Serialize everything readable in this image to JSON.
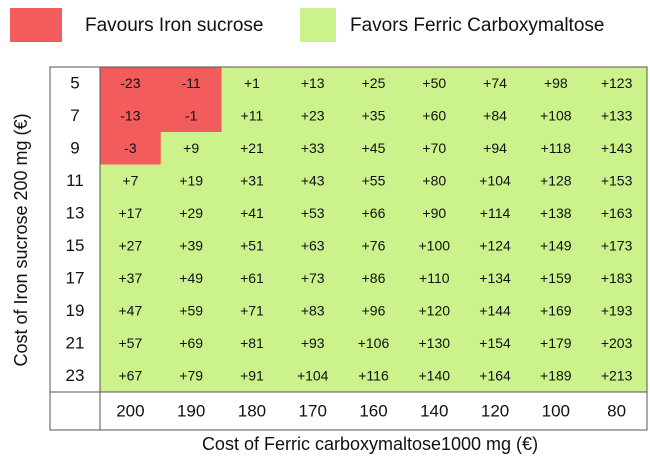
{
  "legend": [
    {
      "name": "Favours Iron sucrose",
      "color": "#f25c5c"
    },
    {
      "name": "Favors Ferric Carboxymaltose",
      "color": "#ccf28c"
    }
  ],
  "y_axis_label": "Cost of Iron sucrose 200 mg (€)",
  "x_axis_label": "Cost of Ferric carboxymaltose1000 mg (€)",
  "table": {
    "row_labels": [
      "5",
      "7",
      "9",
      "11",
      "13",
      "15",
      "17",
      "19",
      "21",
      "23"
    ],
    "column_labels": [
      "200",
      "190",
      "180",
      "170",
      "160",
      "140",
      "120",
      "100",
      "80"
    ],
    "rows": [
      [
        "-23",
        "-11",
        "+1",
        "+13",
        "+25",
        "+50",
        "+74",
        "+98",
        "+123"
      ],
      [
        "-13",
        "-1",
        "+11",
        "+23",
        "+35",
        "+60",
        "+84",
        "+108",
        "+133"
      ],
      [
        "-3",
        "+9",
        "+21",
        "+33",
        "+45",
        "+70",
        "+94",
        "+118",
        "+143"
      ],
      [
        "+7",
        "+19",
        "+31",
        "+43",
        "+55",
        "+80",
        "+104",
        "+128",
        "+153"
      ],
      [
        "+17",
        "+29",
        "+41",
        "+53",
        "+66",
        "+90",
        "+114",
        "+138",
        "+163"
      ],
      [
        "+27",
        "+39",
        "+51",
        "+63",
        "+76",
        "+100",
        "+124",
        "+149",
        "+173"
      ],
      [
        "+37",
        "+49",
        "+61",
        "+73",
        "+86",
        "+110",
        "+134",
        "+159",
        "+183"
      ],
      [
        "+47",
        "+59",
        "+71",
        "+83",
        "+96",
        "+120",
        "+144",
        "+169",
        "+193"
      ],
      [
        "+57",
        "+69",
        "+81",
        "+93",
        "+106",
        "+130",
        "+154",
        "+179",
        "+203"
      ],
      [
        "+67",
        "+79",
        "+91",
        "+104",
        "+116",
        "+140",
        "+164",
        "+189",
        "+213"
      ]
    ]
  }
}
